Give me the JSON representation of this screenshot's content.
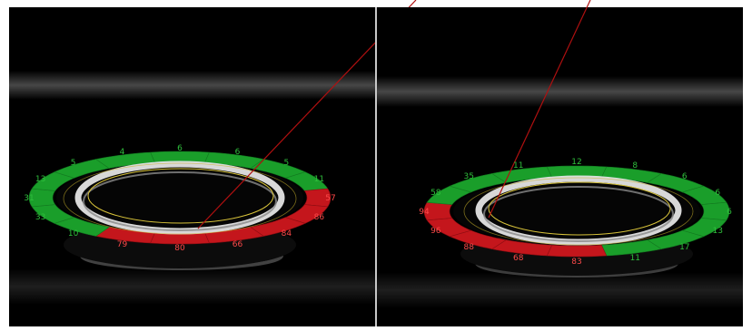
{
  "colors": {
    "background": "#000000",
    "frame": "#ffffff",
    "divider": "#c8c8c8",
    "pass": "#1a9e2a",
    "fail": "#c4161c",
    "label_on_pass": "#0b5c14",
    "label_on_fail": "#ff4a4a",
    "overlay_line": "#b01010",
    "fit_ellipse": "#d8c33a",
    "ring_light": "#e8e8e8"
  },
  "panels": [
    {
      "name": "left",
      "segments": [
        {
          "label": "6",
          "status": "pass"
        },
        {
          "label": "6",
          "status": "pass"
        },
        {
          "label": "5",
          "status": "pass"
        },
        {
          "label": "11",
          "status": "pass"
        },
        {
          "label": "57",
          "status": "fail"
        },
        {
          "label": "86",
          "status": "fail"
        },
        {
          "label": "84",
          "status": "fail"
        },
        {
          "label": "66",
          "status": "fail"
        },
        {
          "label": "80",
          "status": "fail"
        },
        {
          "label": "79",
          "status": "fail"
        },
        {
          "label": "10",
          "status": "pass"
        },
        {
          "label": "33",
          "status": "pass"
        },
        {
          "label": "31",
          "status": "pass"
        },
        {
          "label": "13",
          "status": "pass"
        },
        {
          "label": "5",
          "status": "pass"
        },
        {
          "label": "4",
          "status": "pass"
        }
      ]
    },
    {
      "name": "right",
      "segments": [
        {
          "label": "12",
          "status": "pass"
        },
        {
          "label": "8",
          "status": "pass"
        },
        {
          "label": "6",
          "status": "pass"
        },
        {
          "label": "6",
          "status": "pass"
        },
        {
          "label": "6",
          "status": "pass"
        },
        {
          "label": "13",
          "status": "pass"
        },
        {
          "label": "17",
          "status": "pass"
        },
        {
          "label": "11",
          "status": "pass"
        },
        {
          "label": "83",
          "status": "fail"
        },
        {
          "label": "68",
          "status": "fail"
        },
        {
          "label": "88",
          "status": "fail"
        },
        {
          "label": "96",
          "status": "fail"
        },
        {
          "label": "94",
          "status": "fail"
        },
        {
          "label": "58",
          "status": "pass"
        },
        {
          "label": "35",
          "status": "pass"
        },
        {
          "label": "11",
          "status": "pass"
        }
      ]
    }
  ]
}
